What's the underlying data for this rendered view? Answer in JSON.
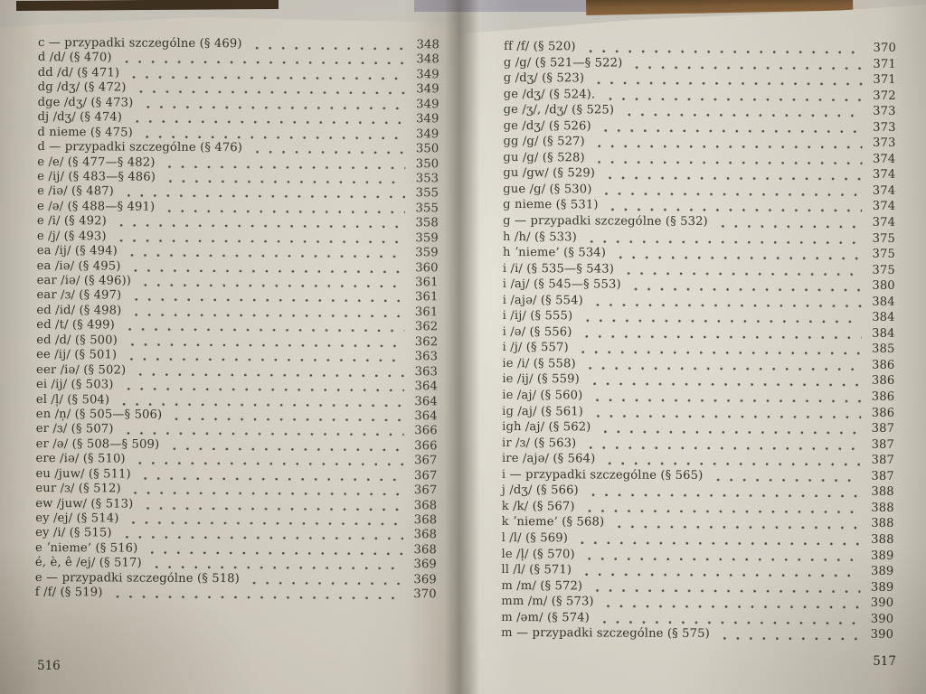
{
  "palette": {
    "paper": "#ddd8cc",
    "ink": "#2f2c26",
    "table_dark": "#3a2b19",
    "wood": "#7d5b35",
    "gray_card": "#a7a3ae",
    "backdrop_sheet": "#cfccc3"
  },
  "book": {
    "left_page": {
      "page_number": "516",
      "entries": [
        {
          "label": "c — przypadki szczególne (§ 469)",
          "page": "348"
        },
        {
          "label": "d /d/ (§ 470)",
          "page": "348"
        },
        {
          "label": "dd /d/ (§ 471)",
          "page": "349"
        },
        {
          "label": "dg /dʒ/ (§ 472)",
          "page": "349"
        },
        {
          "label": "dge /dʒ/ (§ 473)",
          "page": "349"
        },
        {
          "label": "dj /dʒ/ (§ 474)",
          "page": "349"
        },
        {
          "label": "d nieme (§ 475)",
          "page": "349"
        },
        {
          "label": "d — przypadki szczególne (§ 476)",
          "page": "350"
        },
        {
          "label": "e /e/ (§ 477—§ 482)",
          "page": "350"
        },
        {
          "label": "e /ij/ (§ 483—§ 486)",
          "page": "353"
        },
        {
          "label": "e /iə/ (§ 487)",
          "page": "355"
        },
        {
          "label": "e /ə/ (§ 488—§ 491)",
          "page": "355"
        },
        {
          "label": "e /i/ (§ 492)",
          "page": "358"
        },
        {
          "label": "e /j/ (§ 493)",
          "page": "359"
        },
        {
          "label": "ea /ij/ (§ 494)",
          "page": "359"
        },
        {
          "label": "ea /iə/ (§ 495)",
          "page": "360"
        },
        {
          "label": "ear /iə/ (§ 496))",
          "page": "361"
        },
        {
          "label": "ear /ɜ/ (§ 497)",
          "page": "361"
        },
        {
          "label": "ed /id/ (§ 498)",
          "page": "361"
        },
        {
          "label": "ed /t/ (§ 499)",
          "page": "362"
        },
        {
          "label": "ed /d/ (§ 500)",
          "page": "362"
        },
        {
          "label": "ee /ij/ (§ 501)",
          "page": "363"
        },
        {
          "label": "eer /iə/ (§ 502)",
          "page": "363"
        },
        {
          "label": "ei /ij/ (§ 503)",
          "page": "364"
        },
        {
          "label": "el /l̩/ (§ 504)",
          "page": "364"
        },
        {
          "label": "en /n̩/ (§ 505—§ 506)",
          "page": "364"
        },
        {
          "label": "er /ɜ/ (§ 507)",
          "page": "366"
        },
        {
          "label": "er /ə/ (§ 508—§ 509)",
          "page": "366"
        },
        {
          "label": "ere /iə/ (§ 510)",
          "page": "367"
        },
        {
          "label": "eu /juw/ (§ 511)",
          "page": "367"
        },
        {
          "label": "eur /ɜ/ (§ 512)",
          "page": "367"
        },
        {
          "label": "ew /juw/ (§ 513)",
          "page": "368"
        },
        {
          "label": "ey /ej/ (§ 514)",
          "page": "368"
        },
        {
          "label": "ey /i/ (§ 515)",
          "page": "368"
        },
        {
          "label": "e ʼnieme’ (§ 516)",
          "page": "368"
        },
        {
          "label": "é, è, ê /ej/ (§ 517)",
          "page": "369"
        },
        {
          "label": "e — przypadki szczególne (§ 518)",
          "page": "369"
        },
        {
          "label": "f /f/ (§ 519)",
          "page": "370"
        }
      ]
    },
    "right_page": {
      "page_number": "517",
      "entries": [
        {
          "label": "ff /f/ (§ 520)",
          "page": "370"
        },
        {
          "label": "g /g/ (§ 521—§ 522)",
          "page": "371"
        },
        {
          "label": "g /dʒ/ (§ 523)",
          "page": "371"
        },
        {
          "label": "ge /dʒ/ (§ 524).",
          "page": "372"
        },
        {
          "label": "ge /ʒ/, /dʒ/ (§ 525)",
          "page": "373"
        },
        {
          "label": "ge /dʒ/ (§ 526)",
          "page": "373"
        },
        {
          "label": "gg /g/ (§ 527)",
          "page": "373"
        },
        {
          "label": "gu /g/ (§ 528)",
          "page": "374"
        },
        {
          "label": "gu /gw/ (§ 529)",
          "page": "374"
        },
        {
          "label": "gue /g/ (§ 530)",
          "page": "374"
        },
        {
          "label": "g nieme (§ 531)",
          "page": "374"
        },
        {
          "label": "g — przypadki szczególne (§ 532)",
          "page": "374"
        },
        {
          "label": "h /h/ (§ 533)",
          "page": "375"
        },
        {
          "label": "h ʼnieme’ (§ 534)",
          "page": "375"
        },
        {
          "label": "i /i/ (§ 535—§ 543)",
          "page": "375"
        },
        {
          "label": "i /aj/ (§ 545—§ 553)",
          "page": "380"
        },
        {
          "label": "i /ajə/ (§ 554)",
          "page": "384"
        },
        {
          "label": "i /ij/ (§ 555)",
          "page": "384"
        },
        {
          "label": "i /ə/ (§ 556)",
          "page": "384"
        },
        {
          "label": "i /j/ (§ 557)",
          "page": "385"
        },
        {
          "label": "ie /i/ (§ 558)",
          "page": "386"
        },
        {
          "label": "ie /ij/ (§ 559)",
          "page": "386"
        },
        {
          "label": "ie /aj/ (§ 560)",
          "page": "386"
        },
        {
          "label": "ig /aj/ (§ 561)",
          "page": "386"
        },
        {
          "label": "igh /aj/ (§ 562)",
          "page": "387"
        },
        {
          "label": "ir /ɜ/ (§ 563)",
          "page": "387"
        },
        {
          "label": "ire /ajə/ (§ 564)",
          "page": "387"
        },
        {
          "label": "i — przypadki szczególne (§ 565)",
          "page": "387"
        },
        {
          "label": "j /dʒ/ (§ 566)",
          "page": "388"
        },
        {
          "label": "k /k/ (§ 567)",
          "page": "388"
        },
        {
          "label": "k ʼnieme’ (§ 568)",
          "page": "388"
        },
        {
          "label": "l /l/ (§ 569)",
          "page": "388"
        },
        {
          "label": "le /l̩/ (§ 570)",
          "page": "389"
        },
        {
          "label": "ll /l/ (§ 571)",
          "page": "389"
        },
        {
          "label": "m /m/ (§ 572)",
          "page": "389"
        },
        {
          "label": "mm /m/ (§ 573)",
          "page": "390"
        },
        {
          "label": "m /əm/ (§ 574)",
          "page": "390"
        },
        {
          "label": "m — przypadki szczególne (§ 575)",
          "page": "390"
        }
      ]
    }
  }
}
